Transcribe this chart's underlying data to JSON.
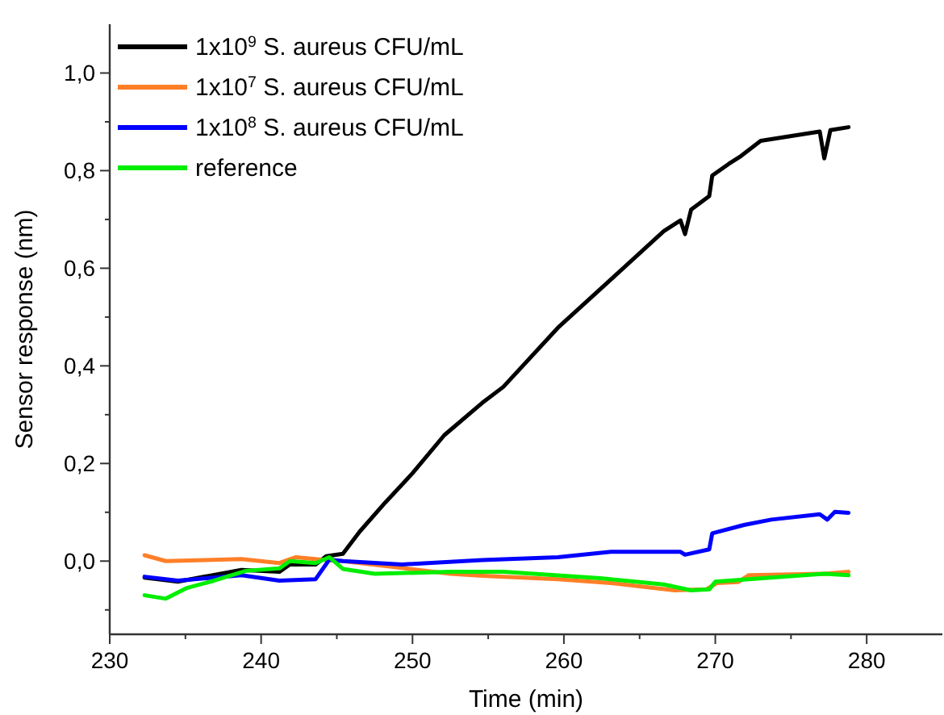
{
  "chart_data": {
    "type": "line",
    "xlabel": "Time (min)",
    "ylabel": "Sensor response (nm)",
    "xlim": [
      230,
      285
    ],
    "ylim": [
      -0.15,
      1.1
    ],
    "xticks": [
      230,
      {
        "value": 235,
        "label": null
      },
      240,
      {
        "value": 245,
        "label": null
      },
      250,
      {
        "value": 255,
        "label": null
      },
      260,
      {
        "value": 265,
        "label": null
      },
      270,
      {
        "value": 275,
        "label": null
      },
      280
    ],
    "yticks": [
      {
        "value": -0.1,
        "label": null
      },
      {
        "value": 0,
        "label": "0,0"
      },
      {
        "value": 0.1,
        "label": null
      },
      {
        "value": 0.2,
        "label": "0,2"
      },
      {
        "value": 0.3,
        "label": null
      },
      {
        "value": 0.4,
        "label": "0,4"
      },
      {
        "value": 0.5,
        "label": null
      },
      {
        "value": 0.6,
        "label": "0,6"
      },
      {
        "value": 0.7,
        "label": null
      },
      {
        "value": 0.8,
        "label": "0,8"
      },
      {
        "value": 0.9,
        "label": null
      },
      {
        "value": 1.0,
        "label": "1,0"
      }
    ],
    "grid": false,
    "legend": "top left",
    "marker": "none",
    "line_style": "solid",
    "series": [
      {
        "name": "1x10$^{9}$ S. aureus CFU/mL",
        "color": "#000000",
        "x": [
          232.3,
          234.5,
          238.7,
          241.2,
          241.9,
          243.6,
          244.3,
          245.4,
          246.5,
          248.2,
          250.0,
          252.1,
          254.6,
          256.0,
          259.6,
          263.1,
          266.6,
          267.7,
          268.0,
          268.4,
          269.6,
          269.8,
          270.9,
          271.7,
          273.0,
          276.9,
          277.2,
          277.6,
          278.8
        ],
        "values": [
          -0.034,
          -0.042,
          -0.018,
          -0.022,
          -0.007,
          -0.007,
          0.01,
          0.015,
          0.06,
          0.12,
          0.18,
          0.258,
          0.324,
          0.357,
          0.478,
          0.577,
          0.676,
          0.698,
          0.67,
          0.72,
          0.748,
          0.79,
          0.814,
          0.83,
          0.861,
          0.88,
          0.825,
          0.883,
          0.889
        ]
      },
      {
        "name": "1x10$^{7}$ S. aureus CFU/mL",
        "color": "#ff7f27",
        "x": [
          232.3,
          233.7,
          238.7,
          241.2,
          242.3,
          244.0,
          245.4,
          249.3,
          252.5,
          254.6,
          259.6,
          263.1,
          267.3,
          269.4,
          270.1,
          271.5,
          272.2,
          277.2,
          278.8
        ],
        "values": [
          0.012,
          0,
          0.004,
          -0.004,
          0.008,
          0.003,
          0,
          -0.014,
          -0.026,
          -0.03,
          -0.037,
          -0.045,
          -0.06,
          -0.058,
          -0.045,
          -0.043,
          -0.029,
          -0.026,
          -0.022
        ]
      },
      {
        "name": "1x10$^{8}$ S. aureus CFU/mL",
        "color": "#0000ff",
        "x": [
          232.3,
          234.5,
          238.7,
          241.2,
          243.6,
          244.5,
          245.4,
          249.3,
          254.6,
          259.6,
          263.1,
          267.7,
          268.0,
          269.6,
          269.8,
          271.9,
          273.7,
          276.9,
          277.4,
          277.9,
          278.8
        ],
        "values": [
          -0.032,
          -0.04,
          -0.029,
          -0.04,
          -0.037,
          0.003,
          0,
          -0.007,
          0.002,
          0.008,
          0.019,
          0.019,
          0.013,
          0.024,
          0.057,
          0.074,
          0.085,
          0.096,
          0.085,
          0.101,
          0.099
        ]
      },
      {
        "name": "reference",
        "color": "#00ee00",
        "x": [
          232.3,
          233.7,
          235.1,
          236.9,
          239.0,
          241.2,
          241.9,
          243.6,
          244.5,
          245.4,
          247.5,
          252.5,
          256.0,
          262.4,
          266.6,
          268.4,
          269.6,
          270.0,
          272.2,
          277.2,
          278.8
        ],
        "values": [
          -0.07,
          -0.077,
          -0.055,
          -0.04,
          -0.02,
          -0.015,
          0,
          -0.004,
          0.008,
          -0.016,
          -0.026,
          -0.022,
          -0.022,
          -0.035,
          -0.048,
          -0.06,
          -0.058,
          -0.042,
          -0.037,
          -0.026,
          -0.029
        ]
      }
    ]
  }
}
